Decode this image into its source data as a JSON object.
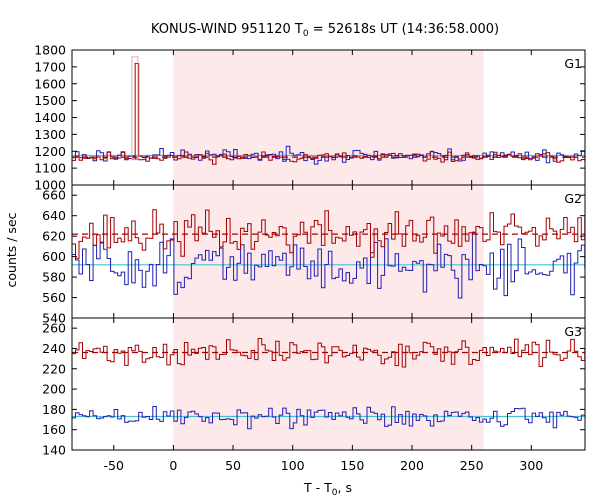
{
  "chart_data": {
    "type": "line",
    "title": "KONUS-WIND 951120 T",
    "title_sub": "0",
    "title_rest": " = 52618s UT (14:36:58.000)",
    "xlabel": "T - T",
    "xlabel_sub": "0",
    "xlabel_rest": ", s",
    "ylabel": "counts / sec",
    "xlim": [
      -85,
      345
    ],
    "x_ticks": [
      -50,
      0,
      50,
      100,
      150,
      200,
      250,
      300
    ],
    "highlight_interval": [
      0,
      260
    ],
    "colors": {
      "red": "#a50000",
      "blue": "#1f1fb4",
      "cyan": "#44c2d4",
      "pink": "#f0a8b0",
      "shade": "#fde8ea"
    },
    "panels": [
      {
        "label": "G1",
        "ylim": [
          1000,
          1800
        ],
        "y_ticks": [
          1000,
          1100,
          1200,
          1300,
          1400,
          1500,
          1600,
          1700,
          1800
        ],
        "bin_width": 2.944,
        "red_bg": 1165,
        "blue_bg": 1175,
        "spike": {
          "x": -31.5,
          "value": 1720,
          "bins": 1
        },
        "red_amp": 22,
        "blue_amp": 28,
        "seed_red": 11,
        "seed_blue": 23
      },
      {
        "label": "G2",
        "ylim": [
          540,
          670
        ],
        "y_ticks": [
          540,
          560,
          580,
          600,
          620,
          640,
          660
        ],
        "bin_width": 2.944,
        "red_bg": 622,
        "blue_bg": 592,
        "red_amp": 15,
        "blue_amp": 18,
        "seed_red": 37,
        "seed_blue": 51
      },
      {
        "label": "G3",
        "ylim": [
          140,
          270
        ],
        "y_ticks": [
          140,
          160,
          180,
          200,
          220,
          240,
          260
        ],
        "bin_width": 2.944,
        "red_bg": 236,
        "blue_bg": 173,
        "red_amp": 9,
        "blue_amp": 8,
        "seed_red": 71,
        "seed_blue": 89
      }
    ]
  }
}
